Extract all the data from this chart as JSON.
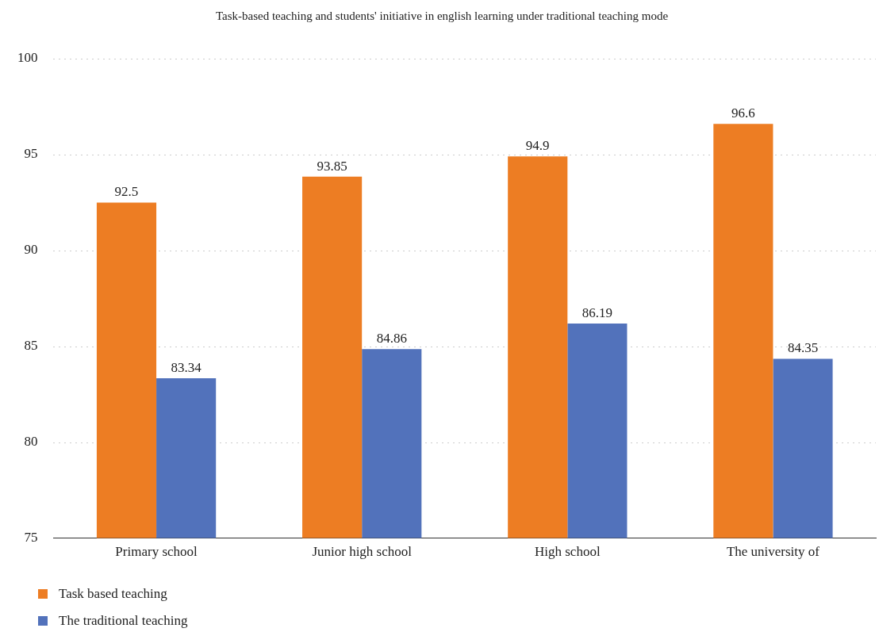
{
  "chart_data": {
    "type": "bar",
    "title": "Task-based teaching and students' initiative in english learning under traditional teaching mode",
    "categories": [
      "Primary school",
      "Junior high school",
      "High school",
      "The university of"
    ],
    "series": [
      {
        "name": "Task based teaching",
        "color": "#ed7d23",
        "values": [
          92.5,
          93.85,
          94.9,
          96.6
        ]
      },
      {
        "name": "The traditional teaching",
        "color": "#5272bb",
        "values": [
          83.34,
          84.86,
          86.19,
          84.35
        ]
      }
    ],
    "ylim": [
      75,
      100
    ],
    "yticks": [
      75,
      80,
      85,
      90,
      95,
      100
    ],
    "grid": "y",
    "legend": "bottom left",
    "data_labels": true
  }
}
